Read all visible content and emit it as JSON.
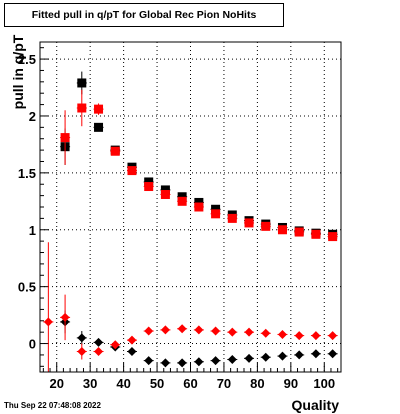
{
  "chart_data": {
    "type": "scatter",
    "title": "Fitted pull in q/pT for Global Rec Pion NoHits",
    "xlabel": "Quality",
    "ylabel": "pull in q/pT",
    "xlim": [
      15,
      105
    ],
    "ylim": [
      -0.25,
      2.65
    ],
    "x_ticks": [
      "20",
      "30",
      "40",
      "50",
      "60",
      "70",
      "80",
      "90",
      "100"
    ],
    "y_ticks": [
      "0",
      "0.5",
      "1",
      "1.5",
      "2",
      "2.5"
    ],
    "grid": true,
    "series": [
      {
        "color": "#000000",
        "marker": "square",
        "x": [
          22.5,
          27.5,
          32.5,
          37.5,
          42.5,
          47.5,
          52.5,
          57.5,
          62.5,
          67.5,
          72.5,
          77.5,
          82.5,
          87.5,
          92.5,
          97.5,
          102.5
        ],
        "y": [
          1.73,
          2.29,
          1.9,
          1.7,
          1.55,
          1.42,
          1.35,
          1.29,
          1.24,
          1.18,
          1.13,
          1.08,
          1.05,
          1.02,
          0.99,
          0.97,
          0.96
        ],
        "yerr": [
          0.16,
          0.1,
          0.03,
          0.03,
          0.02,
          0.02,
          0.02,
          0.02,
          0.02,
          0.02,
          0.02,
          0.02,
          0.02,
          0.02,
          0.02,
          0.02,
          0.02
        ]
      },
      {
        "color": "#ff0000",
        "marker": "square",
        "x": [
          22.5,
          27.5,
          32.5,
          37.5,
          42.5,
          47.5,
          52.5,
          57.5,
          62.5,
          67.5,
          72.5,
          77.5,
          82.5,
          87.5,
          92.5,
          97.5,
          102.5
        ],
        "y": [
          1.81,
          2.07,
          2.06,
          1.69,
          1.52,
          1.38,
          1.31,
          1.25,
          1.2,
          1.14,
          1.1,
          1.06,
          1.03,
          1.0,
          0.98,
          0.96,
          0.94
        ],
        "yerr": [
          0.24,
          0.16,
          0.05,
          0.03,
          0.02,
          0.02,
          0.02,
          0.02,
          0.02,
          0.02,
          0.02,
          0.02,
          0.02,
          0.02,
          0.02,
          0.02,
          0.02
        ]
      },
      {
        "color": "#000000",
        "marker": "diamond",
        "x": [
          22.5,
          27.5,
          32.5,
          37.5,
          42.5,
          47.5,
          52.5,
          57.5,
          62.5,
          67.5,
          72.5,
          77.5,
          82.5,
          87.5,
          92.5,
          97.5,
          102.5
        ],
        "y": [
          0.19,
          0.05,
          0.01,
          -0.03,
          -0.07,
          -0.15,
          -0.17,
          -0.17,
          -0.16,
          -0.15,
          -0.14,
          -0.13,
          -0.12,
          -0.11,
          -0.1,
          -0.09,
          -0.09
        ],
        "yerr": [
          0.1,
          0.06,
          0.03,
          0.02,
          0.02,
          0.01,
          0.01,
          0.01,
          0.01,
          0.01,
          0.01,
          0.01,
          0.01,
          0.01,
          0.01,
          0.01,
          0.01
        ]
      },
      {
        "color": "#ff0000",
        "marker": "diamond",
        "x": [
          17.5,
          22.5,
          27.5,
          32.5,
          37.5,
          42.5,
          47.5,
          52.5,
          57.5,
          62.5,
          67.5,
          72.5,
          77.5,
          82.5,
          87.5,
          92.5,
          97.5,
          102.5
        ],
        "y": [
          0.19,
          0.23,
          -0.07,
          -0.07,
          -0.01,
          0.03,
          0.11,
          0.12,
          0.13,
          0.12,
          0.11,
          0.1,
          0.1,
          0.09,
          0.08,
          0.07,
          0.07,
          0.07
        ],
        "yerr": [
          0.7,
          0.2,
          0.07,
          0.03,
          0.02,
          0.02,
          0.01,
          0.01,
          0.01,
          0.01,
          0.01,
          0.01,
          0.01,
          0.01,
          0.01,
          0.01,
          0.01,
          0.01
        ]
      }
    ]
  },
  "timestamp": "Thu Sep 22 07:48:08 2022"
}
